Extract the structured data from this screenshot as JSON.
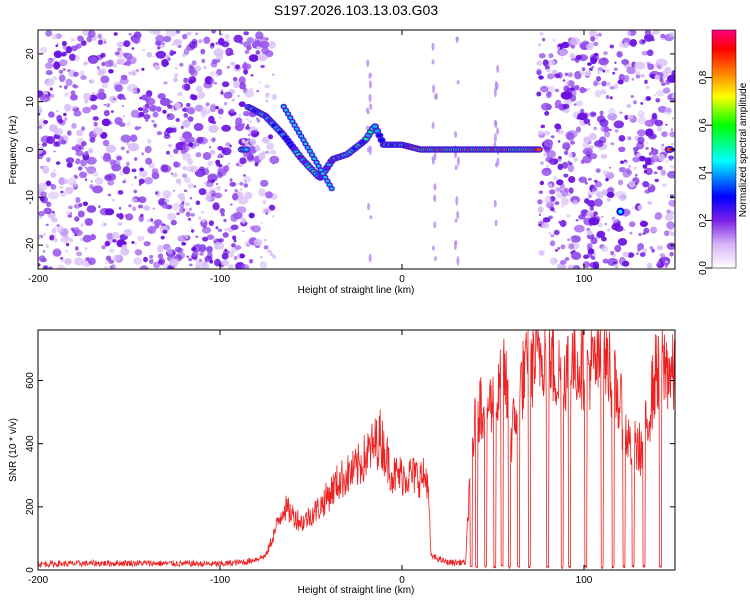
{
  "title": "S197.2026.103.13.03.G03",
  "chart_data": [
    {
      "type": "heatmap",
      "xlabel": "Height of straight line (km)",
      "ylabel": "Frequency (Hz)",
      "xlim": [
        -200,
        150
      ],
      "ylim": [
        -25,
        25
      ],
      "xticks": [
        -200,
        -100,
        0,
        100
      ],
      "yticks": [
        20,
        10,
        0,
        -10,
        -20
      ],
      "colorbar": {
        "label": "Normalized spectral amplitude",
        "range": [
          0,
          1
        ],
        "ticks": [
          "0.0",
          "0.2",
          "0.4",
          "0.6",
          "0.8"
        ],
        "colors": [
          "#ffffff",
          "#d8b4f8",
          "#7a20e8",
          "#0000ff",
          "#00ffff",
          "#00ff00",
          "#ffff00",
          "#ff8000",
          "#ff0000",
          "#ff0080"
        ]
      },
      "track": [
        {
          "x": -85,
          "y": 9
        },
        {
          "x": -75,
          "y": 7
        },
        {
          "x": -65,
          "y": 3
        },
        {
          "x": -55,
          "y": -2
        },
        {
          "x": -45,
          "y": -6
        },
        {
          "x": -38,
          "y": -2
        },
        {
          "x": -30,
          "y": -1
        },
        {
          "x": -20,
          "y": 2
        },
        {
          "x": -15,
          "y": 5
        },
        {
          "x": -10,
          "y": 1
        },
        {
          "x": 0,
          "y": 1
        },
        {
          "x": 10,
          "y": 0
        },
        {
          "x": 30,
          "y": 0
        },
        {
          "x": 50,
          "y": 0
        },
        {
          "x": 75,
          "y": 0
        }
      ]
    },
    {
      "type": "line",
      "xlabel": "Height of straight line (km)",
      "ylabel": "SNR (10 * v/v)",
      "xlim": [
        -200,
        150
      ],
      "ylim": [
        0,
        760
      ],
      "xticks": [
        -200,
        -100,
        0,
        100
      ],
      "yticks": [
        0,
        200,
        400,
        600
      ],
      "color": "#ee2222",
      "series": [
        {
          "x": -200,
          "y": 15
        },
        {
          "x": -150,
          "y": 18
        },
        {
          "x": -100,
          "y": 15
        },
        {
          "x": -85,
          "y": 22
        },
        {
          "x": -75,
          "y": 40
        },
        {
          "x": -65,
          "y": 200
        },
        {
          "x": -55,
          "y": 150
        },
        {
          "x": -45,
          "y": 200
        },
        {
          "x": -35,
          "y": 280
        },
        {
          "x": -25,
          "y": 320
        },
        {
          "x": -12,
          "y": 420
        },
        {
          "x": -5,
          "y": 300
        },
        {
          "x": 5,
          "y": 300
        },
        {
          "x": 14,
          "y": 290
        },
        {
          "x": 16,
          "y": 40
        },
        {
          "x": 25,
          "y": 20
        },
        {
          "x": 35,
          "y": 20
        },
        {
          "x": 38,
          "y": 380
        },
        {
          "x": 42,
          "y": 520
        },
        {
          "x": 47,
          "y": 530
        },
        {
          "x": 52,
          "y": 520
        },
        {
          "x": 56,
          "y": 640
        },
        {
          "x": 60,
          "y": 420
        },
        {
          "x": 66,
          "y": 600
        },
        {
          "x": 72,
          "y": 660
        },
        {
          "x": 78,
          "y": 700
        },
        {
          "x": 85,
          "y": 620
        },
        {
          "x": 95,
          "y": 660
        },
        {
          "x": 105,
          "y": 640
        },
        {
          "x": 112,
          "y": 680
        },
        {
          "x": 118,
          "y": 560
        },
        {
          "x": 125,
          "y": 400
        },
        {
          "x": 132,
          "y": 380
        },
        {
          "x": 140,
          "y": 640
        },
        {
          "x": 146,
          "y": 640
        },
        {
          "x": 150,
          "y": 600
        }
      ]
    }
  ]
}
